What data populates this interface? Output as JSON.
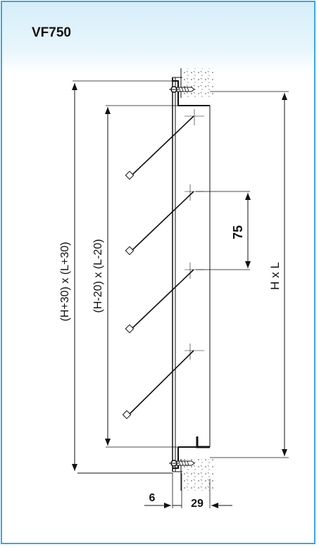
{
  "title": "VF750",
  "dimensions": {
    "outer": "(H+30) x (L+30)",
    "inner": "(H-20) x (L-20)",
    "pitch": "75",
    "nominal": "H x L",
    "flange": "6",
    "depth": "29"
  },
  "colors": {
    "border": "#3aa7dd",
    "header": "#d6eef9",
    "line": "#111111"
  }
}
